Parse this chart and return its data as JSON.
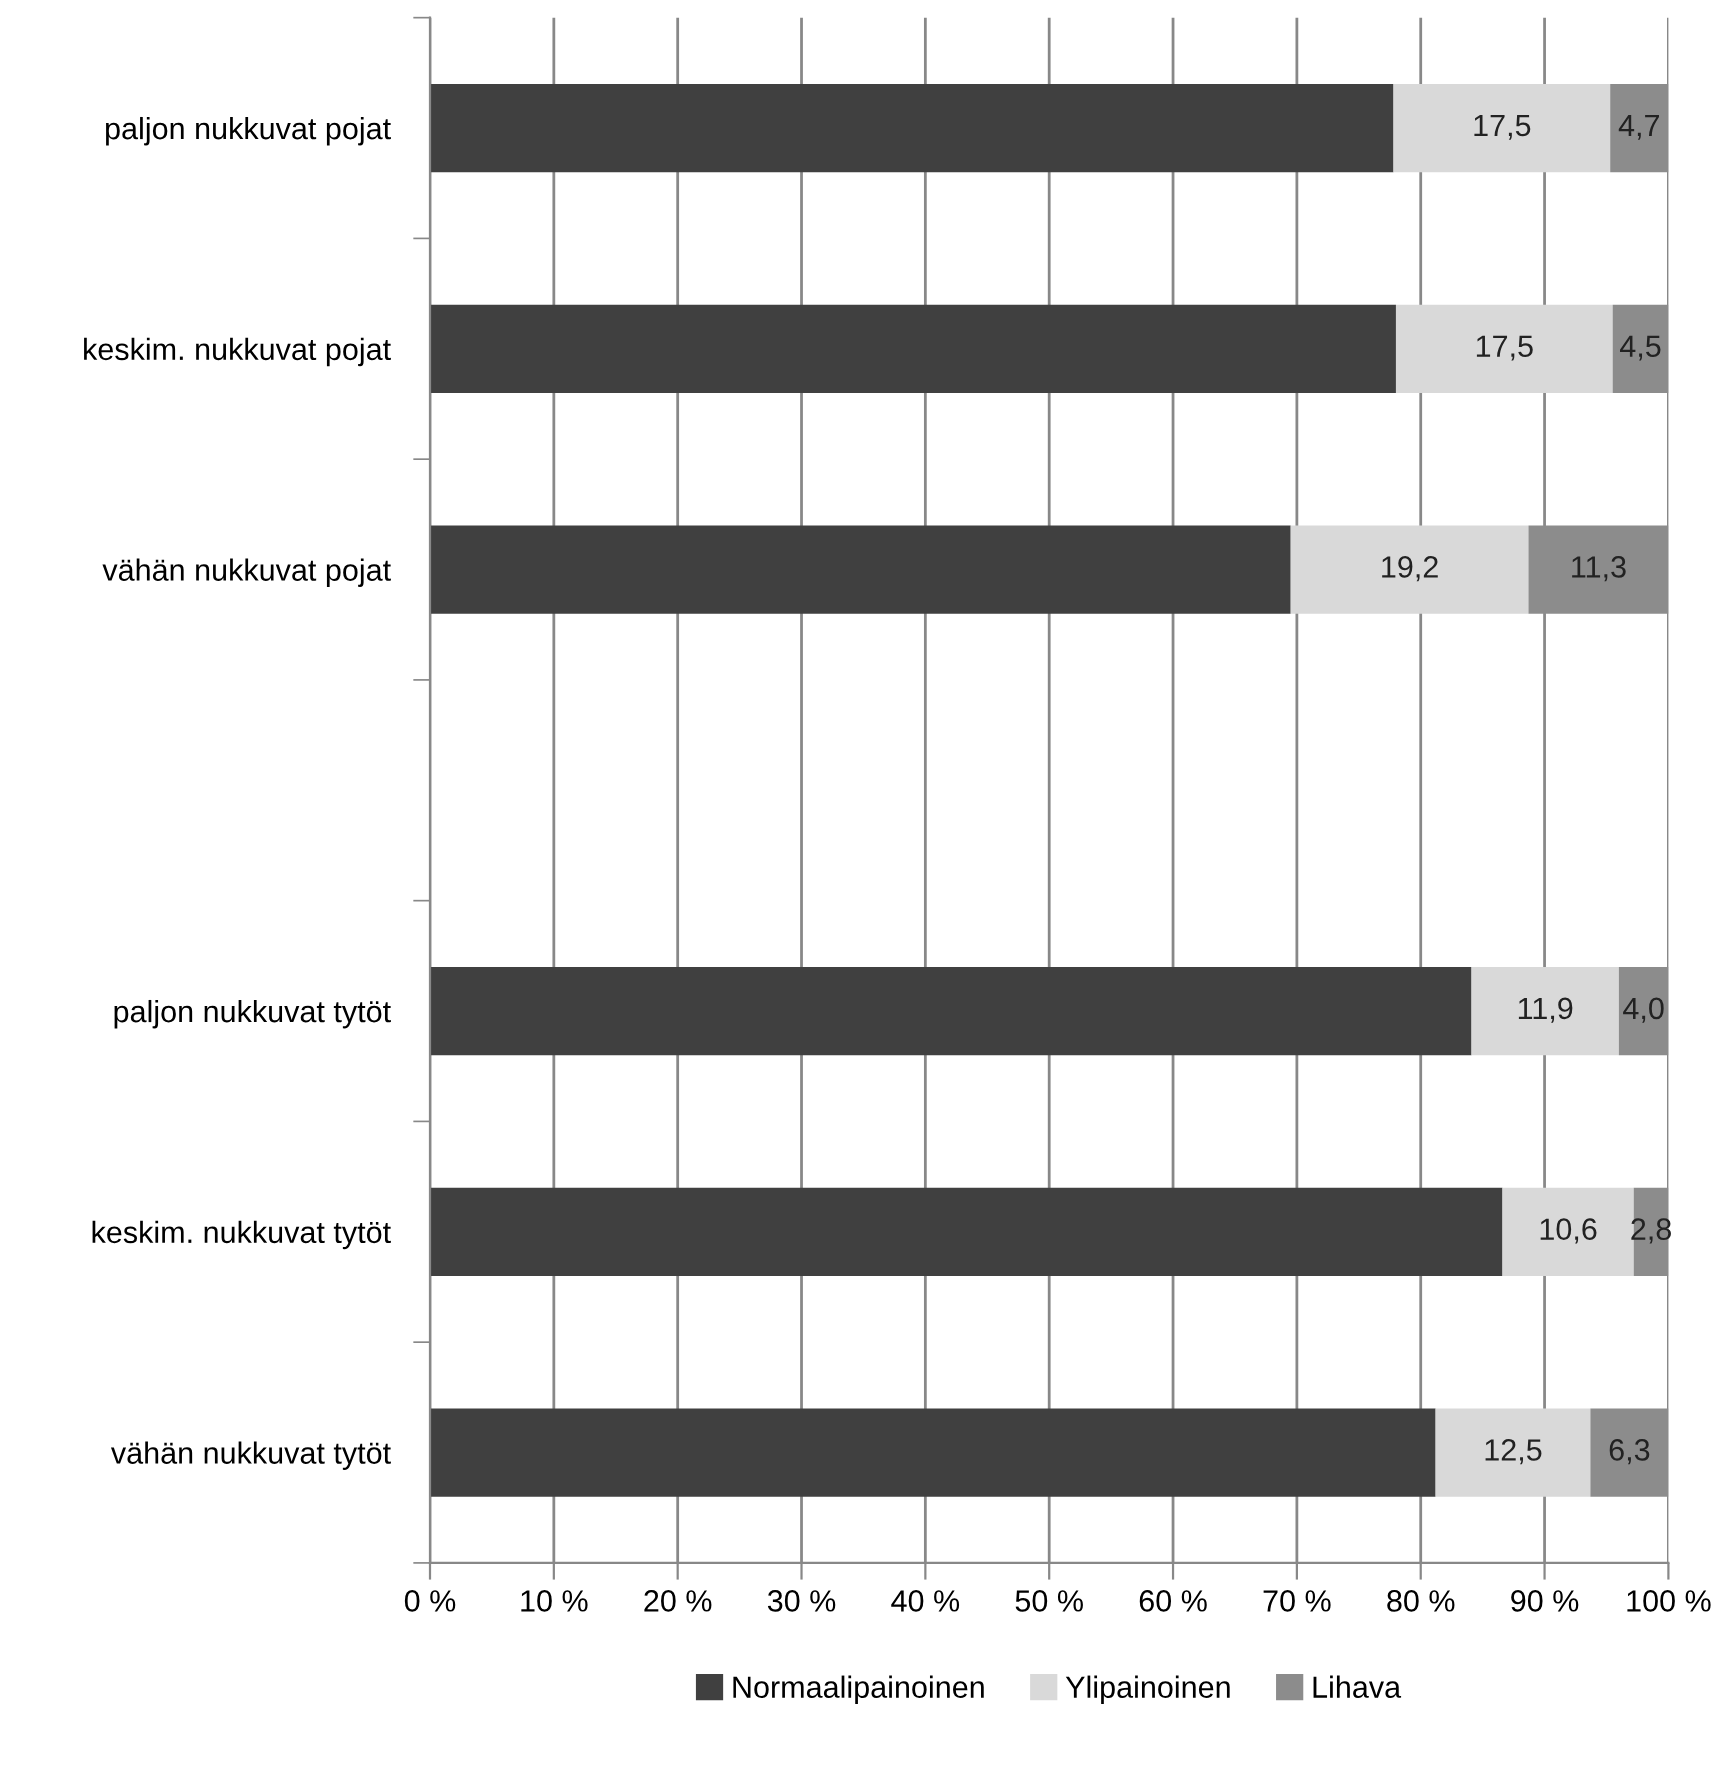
{
  "chart_data": {
    "type": "bar",
    "orientation": "horizontal",
    "stacked": true,
    "categories": [
      "paljon nukkuvat pojat",
      "keskim. nukkuvat pojat",
      "vähän nukkuvat pojat",
      null,
      "paljon nukkuvat tytöt",
      "keskim. nukkuvat tytöt",
      "vähän nukkuvat tytöt"
    ],
    "series": [
      {
        "name": "Normaalipainoinen",
        "color": "#404040",
        "values": [
          77.8,
          78.0,
          69.5,
          null,
          84.1,
          86.6,
          81.2
        ]
      },
      {
        "name": "Ylipainoinen",
        "color": "#d9d9d9",
        "values": [
          17.5,
          17.5,
          19.2,
          null,
          11.9,
          10.6,
          12.5
        ],
        "value_labels": [
          "17,5",
          "17,5",
          "19,2",
          null,
          "11,9",
          "10,6",
          "12,5"
        ]
      },
      {
        "name": "Lihava",
        "color": "#8c8c8c",
        "values": [
          4.7,
          4.5,
          11.3,
          null,
          4.0,
          2.8,
          6.3
        ],
        "value_labels": [
          "4,7",
          "4,5",
          "11,3",
          null,
          "4,0",
          "2,8",
          "6,3"
        ]
      }
    ],
    "xlim": [
      0,
      100
    ],
    "xticks": [
      {
        "value": 0,
        "label": "0 %"
      },
      {
        "value": 10,
        "label": "10 %"
      },
      {
        "value": 20,
        "label": "20 %"
      },
      {
        "value": 30,
        "label": "30 %"
      },
      {
        "value": 40,
        "label": "40 %"
      },
      {
        "value": 50,
        "label": "50 %"
      },
      {
        "value": 60,
        "label": "60 %"
      },
      {
        "value": 70,
        "label": "70 %"
      },
      {
        "value": 80,
        "label": "80 %"
      },
      {
        "value": 90,
        "label": "90 %"
      },
      {
        "value": 100,
        "label": "100 %"
      }
    ],
    "grid": "x",
    "legend": "bottom"
  }
}
